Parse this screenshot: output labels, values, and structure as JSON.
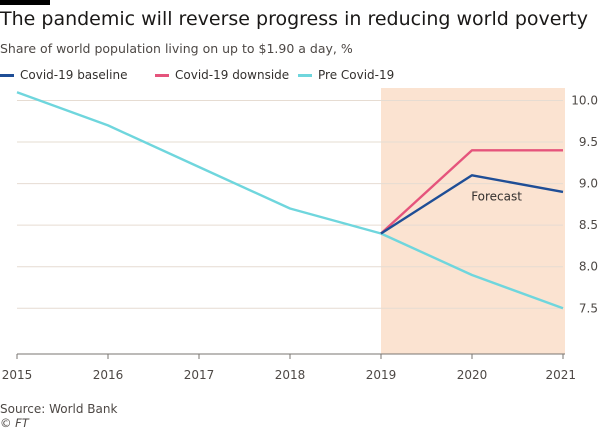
{
  "header": {
    "title": "The pandemic will reverse progress in reducing world poverty",
    "subtitle": "Share of world population living on up to $1.90 a day, %"
  },
  "footer": {
    "source": "Source: World Bank",
    "copyright": "© FT"
  },
  "colors": {
    "baseline": "#1f4e96",
    "downside": "#e5547c",
    "pre_covid": "#6fd6dd",
    "forecast_band": "#fbe3d1"
  },
  "chart_data": {
    "type": "line",
    "x": [
      2015,
      2016,
      2017,
      2018,
      2019,
      2020,
      2021
    ],
    "x_tick_labels": [
      "2015",
      "2016",
      "2017",
      "2018",
      "2019",
      "2020",
      "2021"
    ],
    "y_tick_labels": [
      "10.0",
      "9.5",
      "9.0",
      "8.5",
      "8.0",
      "7.5"
    ],
    "y_ticks": [
      10.0,
      9.5,
      9.0,
      8.5,
      8.0,
      7.5
    ],
    "ylim": [
      6.95,
      10.15
    ],
    "xlim": [
      2015,
      2021
    ],
    "y_axis_side": "right",
    "grid": "horizontal",
    "legend_position": "top",
    "series": [
      {
        "name": "Covid-19 baseline",
        "color_key": "baseline",
        "x": [
          2019,
          2020,
          2021
        ],
        "values": [
          8.4,
          9.1,
          8.9
        ]
      },
      {
        "name": "Covid-19 downside",
        "color_key": "downside",
        "x": [
          2019,
          2020,
          2021
        ],
        "values": [
          8.4,
          9.4,
          9.4
        ]
      },
      {
        "name": "Pre Covid-19",
        "color_key": "pre_covid",
        "x": [
          2015,
          2016,
          2017,
          2018,
          2019,
          2020,
          2021
        ],
        "values": [
          10.1,
          9.7,
          9.2,
          8.7,
          8.4,
          7.9,
          7.5
        ]
      }
    ],
    "shaded_region": {
      "label": "Forecast",
      "x_start": 2019,
      "x_end": 2021
    },
    "annotations": [
      {
        "text": "Forecast",
        "x": 2020.2,
        "y": 8.7
      }
    ]
  }
}
